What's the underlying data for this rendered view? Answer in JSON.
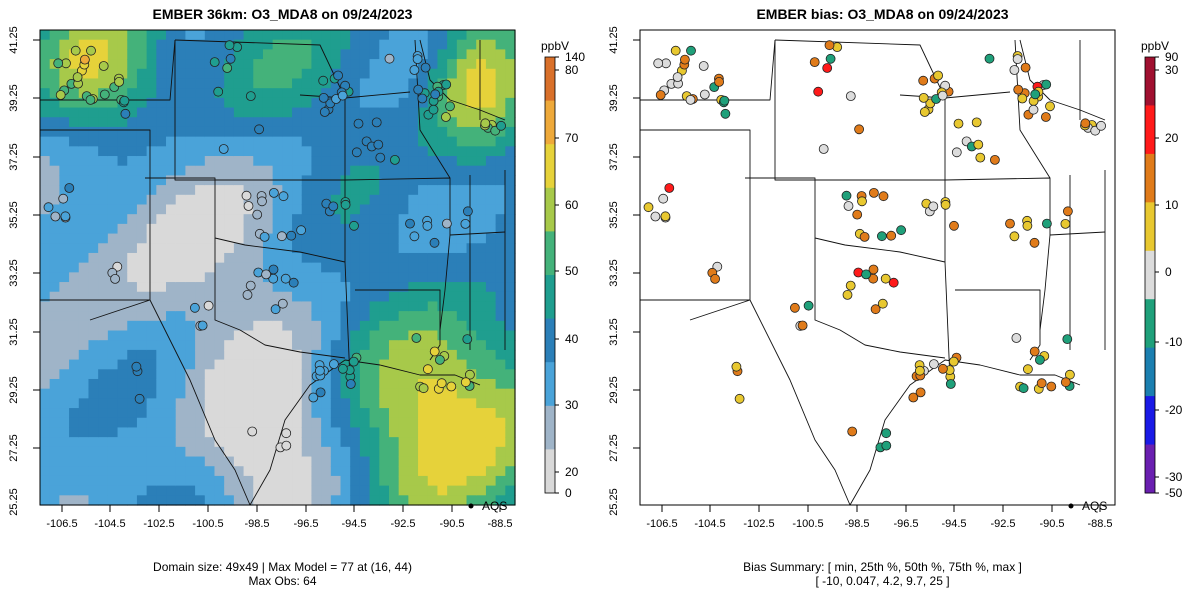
{
  "left_panel": {
    "title": "EMBER 36km: O3_MDA8 on 09/24/2023",
    "colorbar_unit": "ppbV",
    "colorbar_ticks": [
      "140",
      "80",
      "70",
      "60",
      "50",
      "40",
      "30",
      "20",
      "0"
    ],
    "legend_label": "AQS",
    "caption_line1": "Domain size: 49x49 | Max Model = 77 at (16, 44)",
    "caption_line2": "Max Obs: 64"
  },
  "right_panel": {
    "title": "EMBER bias: O3_MDA8 on 09/24/2023",
    "colorbar_unit": "ppbV",
    "colorbar_ticks": [
      "90",
      "30",
      "20",
      "10",
      "0",
      "-10",
      "-20",
      "-30",
      "-50"
    ],
    "legend_label": "AQS",
    "caption_line1": "Bias Summary: [ min, 25th %, 50th %, 75th %, max ]",
    "caption_line2": "[ -10,   0.047,   4.2,   9.7,   25 ]"
  },
  "axes": {
    "x_ticks": [
      "-106.5",
      "-104.5",
      "-102.5",
      "-100.5",
      "-98.5",
      "-96.5",
      "-94.5",
      "-92.5",
      "-90.5",
      "-88.5"
    ],
    "y_ticks": [
      "41.25",
      "39.25",
      "37.25",
      "35.25",
      "33.25",
      "31.25",
      "29.25",
      "27.25",
      "25.25"
    ]
  },
  "colors": {
    "model_scale": [
      "#d9d9d9",
      "#9fb4c8",
      "#4aa3d9",
      "#2b7fb8",
      "#1f9e8f",
      "#44b27a",
      "#a7c94a",
      "#e6d23a",
      "#eea93a",
      "#d9702a"
    ],
    "bias_scale": [
      "#6a1fb0",
      "#1a1ae6",
      "#1b7fb0",
      "#1fa07a",
      "#dcdcdc",
      "#e8c830",
      "#e07b1a",
      "#ff1a1a",
      "#a01030"
    ]
  }
}
